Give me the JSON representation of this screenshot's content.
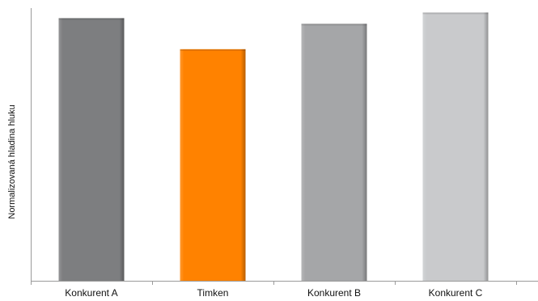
{
  "chart_data": {
    "type": "bar",
    "title": "",
    "xlabel": "",
    "ylabel": "Normalizovaná hladina hluku",
    "categories": [
      "Konkurent A",
      "Timken",
      "Konkurent B",
      "Konkurent C"
    ],
    "values": [
      0.93,
      0.82,
      0.91,
      0.95
    ],
    "ylim": [
      0,
      1
    ],
    "colors": [
      "#7d7e80",
      "#ff8200",
      "#a5a6a8",
      "#c9cacc"
    ],
    "grid": false,
    "legend": "none"
  }
}
